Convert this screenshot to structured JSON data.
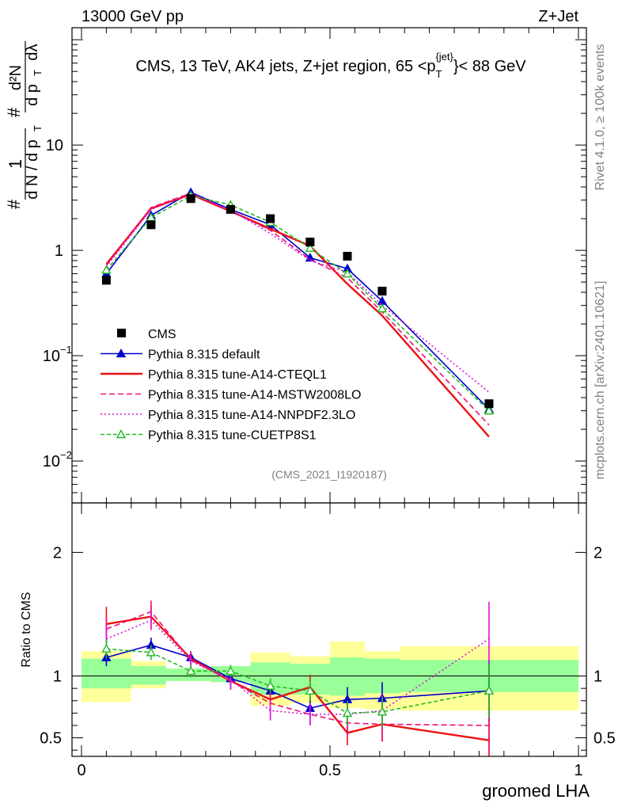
{
  "header": {
    "left": "13000 GeV pp",
    "right": "Z+Jet"
  },
  "side_labels": {
    "rivet": "Rivet 4.1.0, ≥ 100k events",
    "mcplots": "mcplots.cern.ch [arXiv:2401.10621]"
  },
  "main_title": {
    "prefix": "CMS, 13 TeV, AK4 jets, Z+jet region, 65 <p",
    "sub": "T",
    "sup": "{jet}",
    "suffix": "}< 88 GeV"
  },
  "watermark": "(CMS_2021_I1920187)",
  "ylabel_top": {
    "num1": "1",
    "den1": "d N / d p",
    "sub_T": "T",
    "hash": "#",
    "num2": "d²N",
    "den2": "d p",
    "den2_tail": "dλ"
  },
  "ylabel_bottom": "Ratio to CMS",
  "xlabel": "groomed LHA",
  "x_ticks": [
    "0",
    "0.5",
    "1"
  ],
  "y_ticks_top": [
    {
      "base": "10",
      "exp": "−2",
      "value": 0.01
    },
    {
      "base": "10",
      "exp": "−1",
      "value": 0.1
    },
    {
      "base": "1",
      "exp": "",
      "value": 1
    },
    {
      "base": "10",
      "exp": "",
      "value": 10
    }
  ],
  "y_ticks_bottom": [
    "0.5",
    "1",
    "2"
  ],
  "colors": {
    "data": "#000000",
    "default": "#0000cc",
    "cteql1": "#ee1111",
    "mstw": "#ee1177",
    "nnpdf": "#dd11dd",
    "cuetp8s1": "#22bb22",
    "band_inner": "#99ff99",
    "band_outer": "#ffff99"
  },
  "chart_data": {
    "type": "line",
    "title": "CMS, 13 TeV, AK4 jets, Z+jet region, 65 < pT jet < 88 GeV",
    "xlabel": "groomed LHA",
    "ylabel": "1/N dN/dλ",
    "xlim": [
      0,
      1
    ],
    "ylim_top": [
      0.004,
      130
    ],
    "ylim_ratio": [
      0.35,
      2.4
    ],
    "bin_edges": [
      0.0,
      0.1,
      0.17,
      0.26,
      0.34,
      0.42,
      0.5,
      0.57,
      0.64,
      1.0
    ],
    "x": [
      0.05,
      0.14,
      0.22,
      0.3,
      0.38,
      0.46,
      0.535,
      0.605,
      0.82
    ],
    "data": {
      "name": "CMS",
      "values": [
        0.52,
        1.75,
        3.1,
        2.45,
        2.0,
        1.2,
        0.88,
        0.41,
        0.035
      ],
      "band_inner": [
        [
          0.9,
          1.14
        ],
        [
          0.93,
          1.08
        ],
        [
          0.96,
          1.06
        ],
        [
          0.95,
          1.08
        ],
        [
          0.85,
          1.11
        ],
        [
          0.85,
          1.1
        ],
        [
          0.84,
          1.15
        ],
        [
          0.86,
          1.14
        ],
        [
          0.87,
          1.13
        ]
      ],
      "band_outer": [
        [
          0.79,
          1.2
        ],
        [
          0.9,
          1.12
        ],
        [
          0.96,
          1.06
        ],
        [
          0.95,
          1.08
        ],
        [
          0.76,
          1.19
        ],
        [
          0.78,
          1.16
        ],
        [
          0.74,
          1.28
        ],
        [
          0.73,
          1.2
        ],
        [
          0.72,
          1.24
        ]
      ]
    },
    "series": [
      {
        "name": "Pythia 8.315 default",
        "key": "default",
        "style": "solid-triangle",
        "values": [
          0.6,
          2.15,
          3.55,
          2.45,
          1.75,
          0.85,
          0.67,
          0.33,
          0.031
        ],
        "ratio": [
          1.15,
          1.25,
          1.15,
          0.98,
          0.88,
          0.74,
          0.81,
          0.82,
          0.88
        ],
        "ratio_err": [
          0.07,
          0.06,
          0.05,
          0.05,
          0.07,
          0.08,
          0.1,
          0.13,
          0.25
        ]
      },
      {
        "name": "Pythia 8.315 tune-A14-CTEQL1",
        "key": "cteql1",
        "style": "solid",
        "values": [
          0.74,
          2.5,
          3.4,
          2.35,
          1.6,
          1.1,
          0.48,
          0.24,
          0.017
        ],
        "ratio": [
          1.42,
          1.48,
          1.14,
          0.96,
          0.81,
          0.91,
          0.54,
          0.61,
          0.48
        ],
        "ratio_err": [
          0.14,
          0.09,
          0.06,
          0.07,
          0.08,
          0.1,
          0.1,
          0.14,
          0.2
        ]
      },
      {
        "name": "Pythia 8.315 tune-A14-MSTW2008LO",
        "key": "mstw",
        "style": "dashed",
        "values": [
          0.72,
          2.55,
          3.5,
          2.35,
          1.55,
          0.82,
          0.55,
          0.26,
          0.022
        ],
        "ratio": [
          1.38,
          1.52,
          1.13,
          0.96,
          0.78,
          0.69,
          0.62,
          0.61,
          0.6
        ],
        "ratio_err": [
          0.11,
          0.09,
          0.06,
          0.07,
          0.08,
          0.09,
          0.1,
          0.14,
          0.22
        ]
      },
      {
        "name": "Pythia 8.315 tune-A14-NNPDF2.3LO",
        "key": "nnpdf",
        "style": "dotted",
        "values": [
          0.7,
          2.45,
          3.45,
          2.4,
          1.45,
          0.8,
          0.62,
          0.3,
          0.045
        ],
        "ratio": [
          1.3,
          1.45,
          1.12,
          0.97,
          0.72,
          0.69,
          0.69,
          0.72,
          1.3
        ],
        "ratio_err": [
          0.1,
          0.08,
          0.06,
          0.07,
          0.08,
          0.09,
          0.1,
          0.13,
          0.3
        ]
      },
      {
        "name": "Pythia 8.315 tune-CUETP8S1",
        "key": "cuetp8s1",
        "style": "dashed-open-triangle",
        "values": [
          0.65,
          2.05,
          3.3,
          2.7,
          1.85,
          1.05,
          0.6,
          0.28,
          0.03
        ],
        "ratio": [
          1.22,
          1.19,
          1.04,
          1.04,
          0.92,
          0.88,
          0.7,
          0.71,
          0.88
        ],
        "ratio_err": [
          0.08,
          0.06,
          0.05,
          0.05,
          0.06,
          0.08,
          0.1,
          0.12,
          0.22
        ]
      }
    ]
  }
}
